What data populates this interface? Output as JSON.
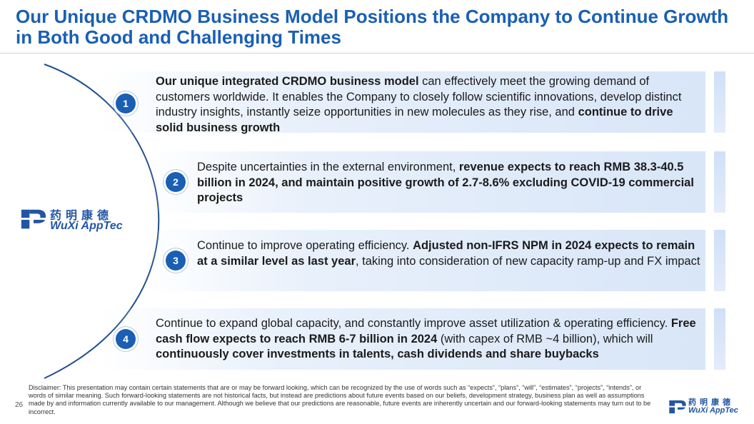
{
  "header": {
    "title_line1": "Our Unique CRDMO Business Model Positions the Company to Continue Growth",
    "title_line2": "in Both Good and Challenging Times"
  },
  "logo": {
    "chinese": "药明康德",
    "english": "WuXi AppTec"
  },
  "points": [
    {
      "number": "1",
      "parts": [
        {
          "bold": true,
          "text": "Our unique integrated CRDMO business model"
        },
        {
          "bold": false,
          "text": " can effectively meet the growing demand of customers worldwide. It enables the Company to closely follow scientific innovations, develop distinct industry insights, instantly seize opportunities in new molecules as they rise, and "
        },
        {
          "bold": true,
          "text": "continue to drive solid business growth"
        }
      ]
    },
    {
      "number": "2",
      "parts": [
        {
          "bold": false,
          "text": "Despite uncertainties in the external environment, "
        },
        {
          "bold": true,
          "text": "revenue expects to reach RMB 38.3-40.5 billion in 2024, and maintain positive growth of 2.7-8.6% excluding COVID-19 commercial projects"
        }
      ]
    },
    {
      "number": "3",
      "parts": [
        {
          "bold": false,
          "text": "Continue to improve operating efficiency. "
        },
        {
          "bold": true,
          "text": "Adjusted non-IFRS NPM in 2024 expects to remain at a similar level as last year"
        },
        {
          "bold": false,
          "text": ", taking into consideration of new capacity ramp-up and FX impact"
        }
      ]
    },
    {
      "number": "4",
      "parts": [
        {
          "bold": false,
          "text": "Continue to expand global capacity, and constantly improve asset utilization & operating efficiency. "
        },
        {
          "bold": true,
          "text": "Free cash flow expects to reach RMB 6-7 billion in 2024"
        },
        {
          "bold": false,
          "text": " (with capex of RMB ~4 billion), which will "
        },
        {
          "bold": true,
          "text": "continuously cover investments in talents, cash dividends and share buybacks"
        }
      ]
    }
  ],
  "footer": {
    "page_number": "26",
    "disclaimer": "Disclaimer: This presentation may contain certain statements that are or may be forward looking, which can be recognized by the use of words such as “expects”, “plans”, “will”, “estimates”, “projects”, “intends”, or words of similar meaning. Such forward-looking statements are not historical facts, but instead are predictions about future events based on our beliefs, development strategy, business plan as well as assumptions made by and information currently available to our management. Although we believe that our predictions are reasonable, future events are inherently uncertain and our forward-looking statements may turn out to be incorrect."
  },
  "colors": {
    "accent": "#1a5fb4",
    "band": "#dce8f8"
  }
}
